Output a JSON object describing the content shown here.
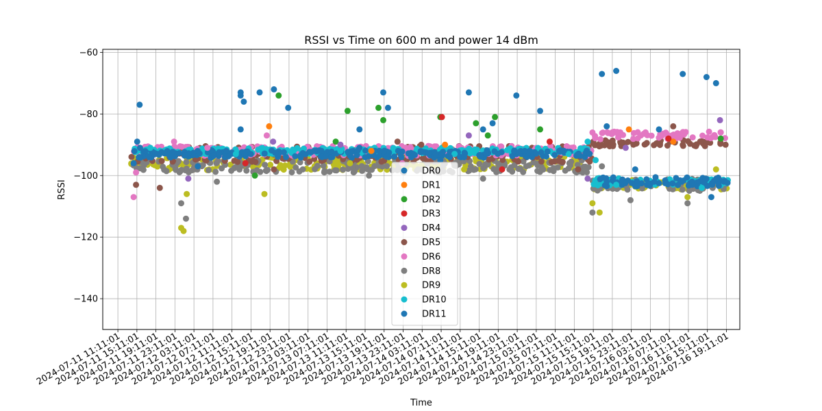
{
  "chart_data": {
    "type": "scatter",
    "title": "RSSI vs Time on 600 m and power 14 dBm",
    "xlabel": "Time",
    "ylabel": "RSSI",
    "x_type": "datetime",
    "xlim": [
      "2024-07-11 08:00:00",
      "2024-07-16 22:00:00"
    ],
    "ylim": [
      -150,
      -59
    ],
    "yticks": [
      -60,
      -80,
      -100,
      -120,
      -140
    ],
    "xticks": [
      "2024-07-11 11:11:01",
      "2024-07-11 15:11:01",
      "2024-07-11 19:11:01",
      "2024-07-11 23:11:01",
      "2024-07-12 03:11:01",
      "2024-07-12 07:11:01",
      "2024-07-12 11:11:01",
      "2024-07-12 15:11:01",
      "2024-07-12 19:11:01",
      "2024-07-12 23:11:01",
      "2024-07-13 03:11:01",
      "2024-07-13 07:11:01",
      "2024-07-13 11:11:01",
      "2024-07-13 15:11:01",
      "2024-07-13 19:11:01",
      "2024-07-13 23:11:01",
      "2024-07-14 03:11:01",
      "2024-07-14 07:11:01",
      "2024-07-14 11:11:01",
      "2024-07-14 15:11:01",
      "2024-07-14 19:11:01",
      "2024-07-14 23:11:01",
      "2024-07-15 03:11:01",
      "2024-07-15 07:11:01",
      "2024-07-15 11:11:01",
      "2024-07-15 15:11:01",
      "2024-07-15 19:11:01",
      "2024-07-15 23:11:01",
      "2024-07-16 03:11:01",
      "2024-07-16 07:11:01",
      "2024-07-16 11:11:01",
      "2024-07-16 15:11:01",
      "2024-07-16 19:11:01"
    ],
    "grid": true,
    "legend_position": "center",
    "series": [
      {
        "name": "DR0",
        "color": "#1f77b4",
        "points": [
          [
            "2024-07-11 15:15",
            -89
          ],
          [
            "2024-07-11 15:45",
            -77
          ],
          [
            "2024-07-11 19:30",
            -93
          ],
          [
            "2024-07-12 10:00",
            -92
          ],
          [
            "2024-07-13 04:30",
            -92
          ],
          [
            "2024-07-13 14:00",
            -91
          ],
          [
            "2024-07-14 07:00",
            -95
          ],
          [
            "2024-07-15 08:00",
            -92
          ],
          [
            "2024-07-15 18:00",
            -102
          ],
          [
            "2024-07-16 04:00",
            -102
          ],
          [
            "2024-07-16 12:00",
            -103
          ]
        ]
      },
      {
        "name": "DR1",
        "color": "#ff7f0e",
        "points": [
          [
            "2024-07-12 19:00",
            -84
          ],
          [
            "2024-07-13 16:30",
            -92
          ],
          [
            "2024-07-14 08:00",
            -90
          ],
          [
            "2024-07-15 22:40",
            -85
          ],
          [
            "2024-07-16 08:00",
            -89
          ]
        ]
      },
      {
        "name": "DR2",
        "color": "#2ca02c",
        "points": [
          [
            "2024-07-12 21:00",
            -74
          ],
          [
            "2024-07-13 11:30",
            -79
          ],
          [
            "2024-07-13 18:00",
            -78
          ],
          [
            "2024-07-13 19:00",
            -82
          ],
          [
            "2024-07-14 07:00",
            -81
          ],
          [
            "2024-07-14 14:30",
            -83
          ],
          [
            "2024-07-14 17:00",
            -87
          ],
          [
            "2024-07-14 18:30",
            -81
          ],
          [
            "2024-07-15 04:00",
            -85
          ],
          [
            "2024-07-13 09:00",
            -89
          ],
          [
            "2024-07-16 18:00",
            -88
          ],
          [
            "2024-07-12 16:00",
            -100
          ]
        ]
      },
      {
        "name": "DR3",
        "color": "#d62728",
        "points": [
          [
            "2024-07-14 07:20",
            -81
          ],
          [
            "2024-07-15 06:00",
            -89
          ],
          [
            "2024-07-14 20:00",
            -98
          ],
          [
            "2024-07-16 07:00",
            -88
          ],
          [
            "2024-07-12 14:00",
            -96
          ]
        ]
      },
      {
        "name": "DR4",
        "color": "#9467bd",
        "points": [
          [
            "2024-07-12 19:50",
            -89
          ],
          [
            "2024-07-14 13:00",
            -87
          ],
          [
            "2024-07-15 14:00",
            -101
          ],
          [
            "2024-07-16 17:50",
            -82
          ],
          [
            "2024-07-12 02:00",
            -101
          ],
          [
            "2024-07-15 22:00",
            -91
          ],
          [
            "2024-07-13 10:00",
            -90
          ]
        ]
      },
      {
        "name": "DR5",
        "color": "#8c564b",
        "points": [
          [
            "2024-07-11 15:00",
            -103
          ],
          [
            "2024-07-11 20:00",
            -104
          ],
          [
            "2024-07-13 22:00",
            -89
          ],
          [
            "2024-07-16 08:00",
            -84
          ],
          [
            "2024-07-15 18:00",
            -89
          ],
          [
            "2024-07-16 19:00",
            -90
          ],
          [
            "2024-07-14 03:00",
            -90
          ],
          [
            "2024-07-12 20:00",
            -98
          ],
          [
            "2024-07-15 12:00",
            -98
          ]
        ]
      },
      {
        "name": "DR6",
        "color": "#e377c2",
        "points": [
          [
            "2024-07-11 14:30",
            -107
          ],
          [
            "2024-07-11 15:00",
            -99
          ],
          [
            "2024-07-11 23:00",
            -89
          ],
          [
            "2024-07-12 18:30",
            -87
          ],
          [
            "2024-07-15 15:00",
            -86
          ],
          [
            "2024-07-15 20:00",
            -86
          ],
          [
            "2024-07-16 10:00",
            -86
          ],
          [
            "2024-07-16 18:00",
            -86
          ],
          [
            "2024-07-12 06:00",
            -91
          ],
          [
            "2024-07-13 23:00",
            -96
          ]
        ]
      },
      {
        "name": "DR8",
        "color": "#7f7f7f",
        "points": [
          [
            "2024-07-12 00:30",
            -109
          ],
          [
            "2024-07-12 01:30",
            -114
          ],
          [
            "2024-07-15 15:00",
            -112
          ],
          [
            "2024-07-16 11:00",
            -109
          ],
          [
            "2024-07-15 23:00",
            -108
          ],
          [
            "2024-07-13 16:00",
            -100
          ],
          [
            "2024-07-12 08:00",
            -102
          ],
          [
            "2024-07-14 16:00",
            -101
          ],
          [
            "2024-07-15 17:00",
            -97
          ]
        ]
      },
      {
        "name": "DR9",
        "color": "#bcbd22",
        "points": [
          [
            "2024-07-12 00:30",
            -117
          ],
          [
            "2024-07-12 01:00",
            -118
          ],
          [
            "2024-07-12 01:40",
            -106
          ],
          [
            "2024-07-12 18:00",
            -106
          ],
          [
            "2024-07-15 15:00",
            -109
          ],
          [
            "2024-07-15 16:30",
            -112
          ],
          [
            "2024-07-16 11:00",
            -107
          ],
          [
            "2024-07-13 12:00",
            -96
          ],
          [
            "2024-07-14 12:00",
            -98
          ],
          [
            "2024-07-16 17:00",
            -98
          ]
        ]
      },
      {
        "name": "DR10",
        "color": "#17becf",
        "points": [
          [
            "2024-07-11 18:00",
            -91
          ],
          [
            "2024-07-12 12:00",
            -93
          ],
          [
            "2024-07-13 10:00",
            -92
          ],
          [
            "2024-07-14 10:00",
            -93
          ],
          [
            "2024-07-15 10:00",
            -93
          ],
          [
            "2024-07-15 14:00",
            -89
          ],
          [
            "2024-07-15 15:40",
            -95
          ],
          [
            "2024-07-15 20:00",
            -103
          ],
          [
            "2024-07-16 14:00",
            -104
          ]
        ]
      },
      {
        "name": "DR11",
        "color": "#1f77b4",
        "points": [
          [
            "2024-07-11 14:30",
            -96
          ],
          [
            "2024-07-11 15:50",
            -91
          ],
          [
            "2024-07-12 13:00",
            -73
          ],
          [
            "2024-07-12 13:00",
            -74
          ],
          [
            "2024-07-12 13:40",
            -76
          ],
          [
            "2024-07-12 13:00",
            -85
          ],
          [
            "2024-07-12 17:00",
            -73
          ],
          [
            "2024-07-12 20:00",
            -72
          ],
          [
            "2024-07-12 23:00",
            -78
          ],
          [
            "2024-07-13 14:00",
            -85
          ],
          [
            "2024-07-13 19:00",
            -73
          ],
          [
            "2024-07-13 20:00",
            -78
          ],
          [
            "2024-07-14 13:00",
            -73
          ],
          [
            "2024-07-14 16:00",
            -85
          ],
          [
            "2024-07-14 18:00",
            -83
          ],
          [
            "2024-07-14 23:00",
            -74
          ],
          [
            "2024-07-15 04:00",
            -79
          ],
          [
            "2024-07-15 17:00",
            -67
          ],
          [
            "2024-07-15 18:00",
            -84
          ],
          [
            "2024-07-15 20:00",
            -66
          ],
          [
            "2024-07-16 00:00",
            -98
          ],
          [
            "2024-07-16 05:00",
            -85
          ],
          [
            "2024-07-16 10:00",
            -67
          ],
          [
            "2024-07-16 15:00",
            -68
          ],
          [
            "2024-07-16 17:00",
            -70
          ],
          [
            "2024-07-16 16:00",
            -107
          ],
          [
            "2024-07-12 04:00",
            -97
          ],
          [
            "2024-07-13 06:00",
            -92
          ],
          [
            "2024-07-14 09:00",
            -94
          ],
          [
            "2024-07-15 09:00",
            -92
          ]
        ]
      }
    ]
  }
}
